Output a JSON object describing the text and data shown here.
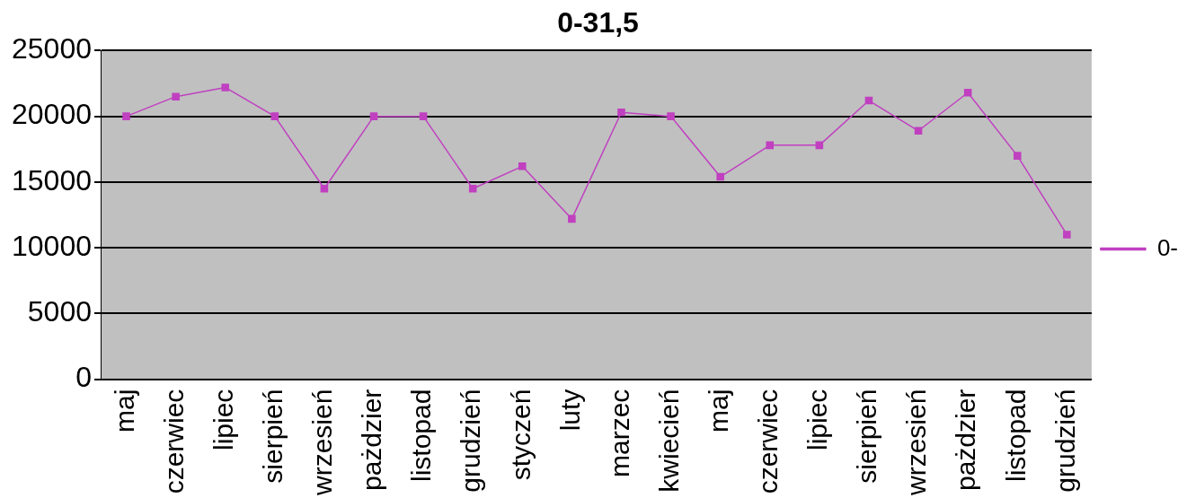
{
  "chart_data": {
    "type": "line",
    "title": "0-31,5",
    "categories": [
      "maj",
      "czerwiec",
      "lipiec",
      "sierpień",
      "wrzesień",
      "pażdzier",
      "listopad",
      "grudzień",
      "styczeń",
      "luty",
      "marzec",
      "kwiecień",
      "maj",
      "czerwiec",
      "lipiec",
      "sierpień",
      "wrzesień",
      "pażdzier",
      "listopad",
      "grudzień"
    ],
    "series": [
      {
        "name": "0-",
        "color": "#c040c0",
        "values": [
          20000,
          21500,
          22200,
          20000,
          14500,
          20000,
          20000,
          14500,
          16200,
          12200,
          20300,
          20000,
          15400,
          17800,
          17800,
          21200,
          18900,
          21800,
          17000,
          11000
        ]
      }
    ],
    "ylim": [
      0,
      25000
    ],
    "yticks": [
      0,
      5000,
      10000,
      15000,
      20000,
      25000
    ],
    "grid": "y",
    "legend": "right",
    "marker": "square",
    "line_style": "solid"
  }
}
